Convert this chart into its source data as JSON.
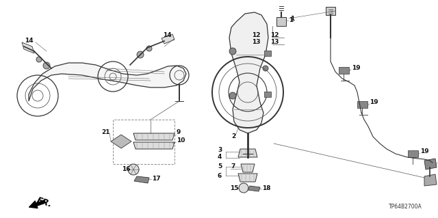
{
  "background_color": "#ffffff",
  "fig_width": 6.4,
  "fig_height": 3.19,
  "dpi": 100,
  "diagram_code": "TP64B2700A",
  "fr_label": "FR.",
  "label_fontsize": 6.5,
  "label_color": "#111111",
  "line_color": "#333333",
  "light_color": "#888888",
  "fill_color": "#dddddd",
  "dark_fill": "#999999"
}
